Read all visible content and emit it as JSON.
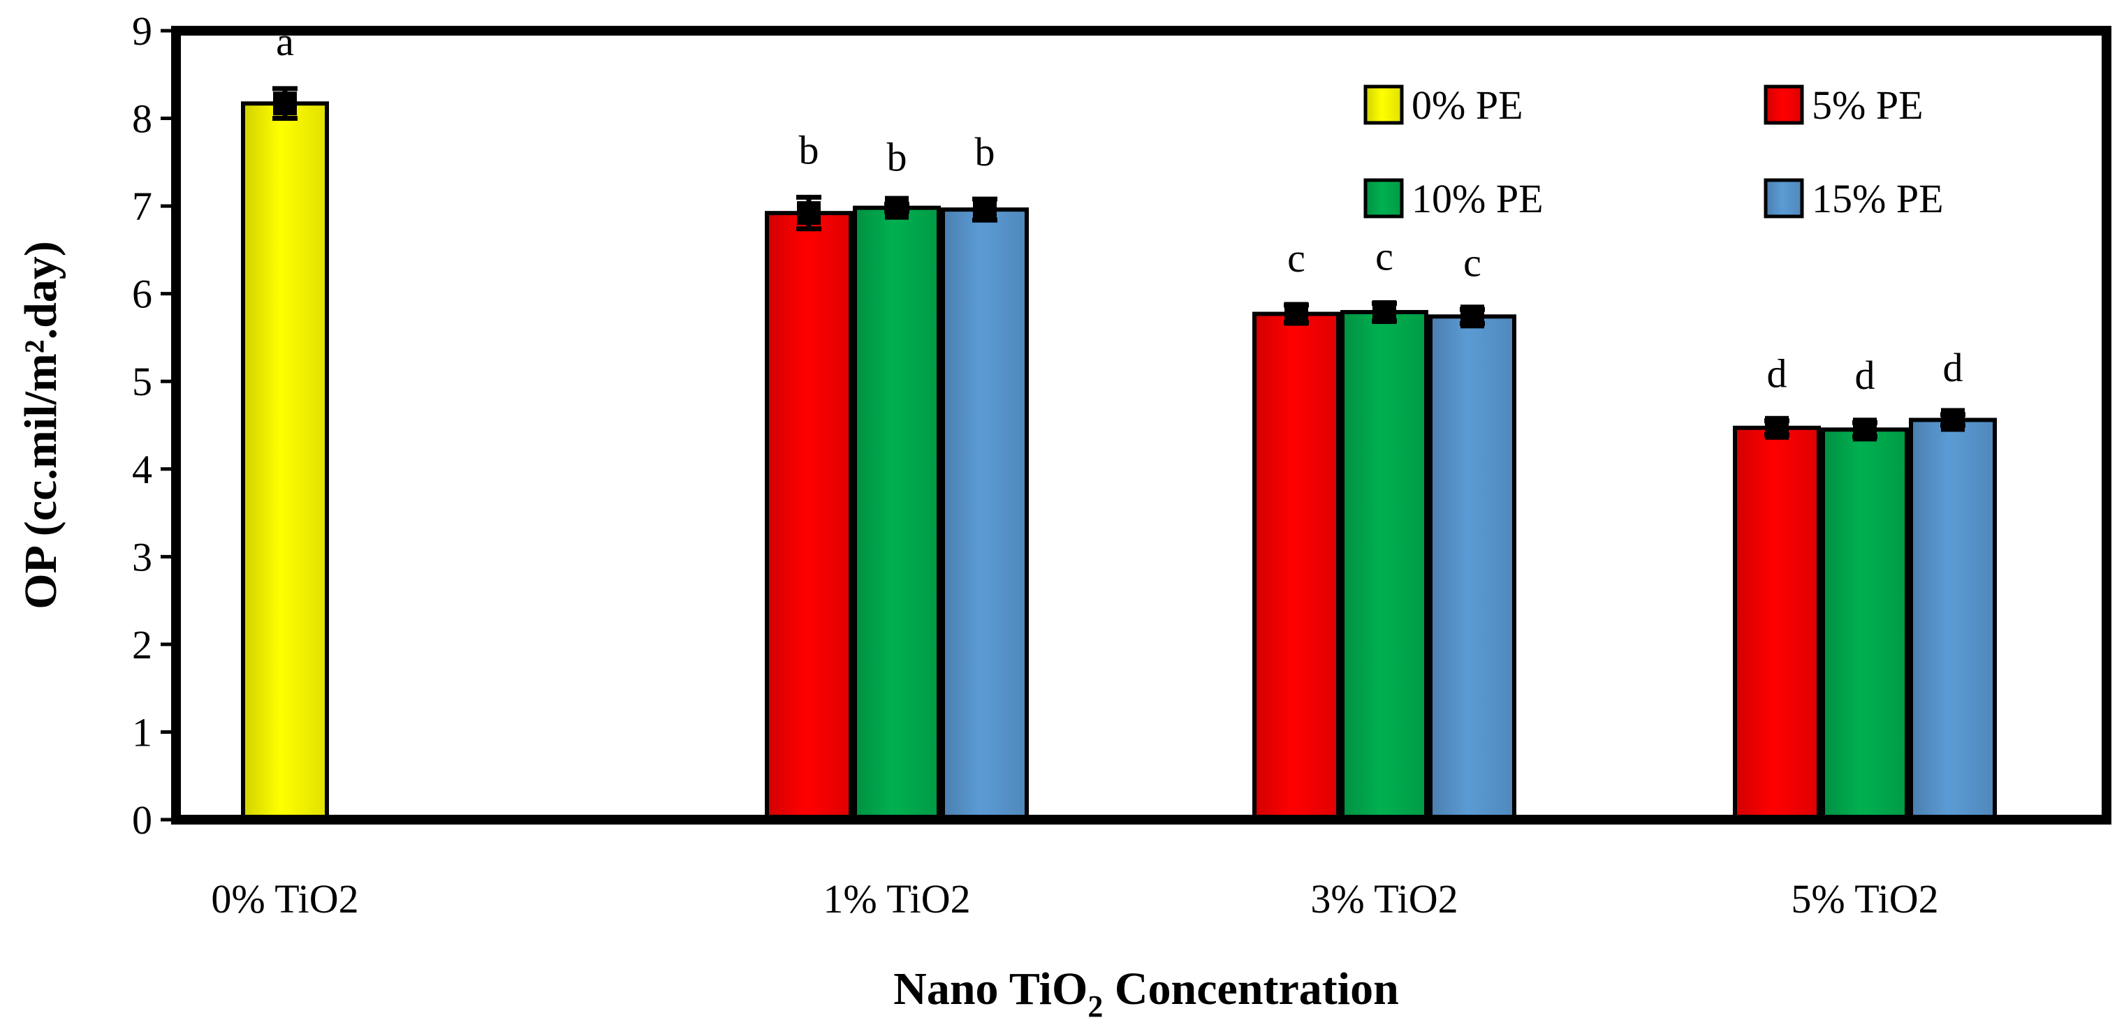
{
  "chart_data": {
    "type": "bar",
    "title": "",
    "xlabel": "Nano TiO",
    "xlabel_sub": "2",
    "xlabel_tail": " Concentration",
    "ylabel": "OP (cc.mil/m².day)",
    "ylim": [
      0,
      9
    ],
    "yticks": [
      "0",
      "1",
      "2",
      "3",
      "4",
      "5",
      "6",
      "7",
      "8",
      "9"
    ],
    "categories": [
      "0% TiO2",
      "1% TiO2",
      "3% TiO2",
      "5% TiO2"
    ],
    "legend_position": "top-right",
    "series": [
      {
        "name": "0% PE",
        "color": "#FFFF00",
        "values": [
          8.17,
          null,
          null,
          null
        ],
        "errors": [
          0.17,
          null,
          null,
          null
        ],
        "letters": [
          "a",
          null,
          null,
          null
        ]
      },
      {
        "name": "5% PE",
        "color": "#FF0000",
        "values": [
          null,
          6.92,
          5.77,
          4.47
        ],
        "errors": [
          null,
          0.18,
          0.1,
          0.08
        ],
        "letters": [
          null,
          "b",
          "c",
          "d"
        ]
      },
      {
        "name": "10% PE",
        "color": "#00B050",
        "values": [
          null,
          6.98,
          5.79,
          4.45
        ],
        "errors": [
          null,
          0.04,
          0.1,
          0.08
        ],
        "letters": [
          null,
          "b",
          "c",
          "d"
        ]
      },
      {
        "name": "15% PE",
        "color": "#5B9BD5",
        "values": [
          null,
          6.96,
          5.74,
          4.56
        ],
        "errors": [
          null,
          0.12,
          0.08,
          0.06
        ],
        "letters": [
          null,
          "b",
          "c",
          "d"
        ]
      }
    ]
  }
}
